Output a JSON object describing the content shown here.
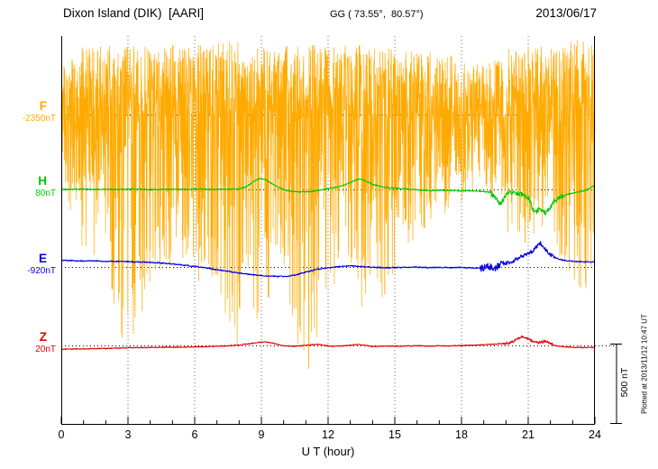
{
  "header": {
    "station_title": "Dixon Island (DIK)  [AARI]",
    "gg_coords": "GG ( 73.55°,  80.57°)",
    "date": "2013/06/17"
  },
  "xaxis": {
    "label": "U T (hour)",
    "ticks": [
      0,
      3,
      6,
      9,
      12,
      15,
      18,
      21,
      24
    ],
    "range_hours": [
      0,
      24
    ],
    "minor_tick_step_hours": 1
  },
  "scale_bar": {
    "label": "500 nT",
    "nT": 500
  },
  "footnote": "Plotted at 2013/11/12 10:47 UT",
  "chart_data": {
    "type": "line",
    "title": "Magnetogram, Dixon Island (DIK) AARI, 2013/06/17",
    "xlabel": "U T (hour)",
    "x_range_hours": [
      0,
      24
    ],
    "grid": "dotted vertical line every 3 h; dotted horizontal baseline per channel",
    "value_units": "nT offset from channel baseline (scale bar = 500 nT)",
    "series": [
      {
        "id": "F",
        "label": "F",
        "baseline_label": "-2350nT",
        "baseline_nT": -2350,
        "color": "#FFAA00",
        "character": "dense high-frequency noise band spanning most of plot height",
        "noise_envelope_by_hour": {
          "up_nT": [
            350,
            430,
            440,
            430,
            430,
            440,
            440,
            450,
            460,
            440,
            430,
            450,
            440,
            460,
            430,
            420,
            400,
            390,
            360,
            300,
            420,
            440,
            430,
            470
          ],
          "down_nT": [
            500,
            900,
            1000,
            1600,
            1100,
            950,
            1050,
            1050,
            1650,
            1250,
            1050,
            1750,
            1150,
            950,
            1550,
            1000,
            750,
            650,
            550,
            420,
            750,
            850,
            750,
            1100
          ]
        }
      },
      {
        "id": "H",
        "label": "H",
        "baseline_label": "80nT",
        "baseline_nT": 80,
        "color": "#00C800",
        "keypoints_hour_nT": [
          [
            0,
            0
          ],
          [
            0.5,
            1
          ],
          [
            1,
            2
          ],
          [
            1.5,
            0
          ],
          [
            2,
            1
          ],
          [
            2.5,
            -1
          ],
          [
            3,
            1
          ],
          [
            3.5,
            2
          ],
          [
            4,
            -1
          ],
          [
            4.5,
            0
          ],
          [
            5,
            1
          ],
          [
            5.5,
            0
          ],
          [
            6,
            2
          ],
          [
            6.5,
            1
          ],
          [
            7,
            0
          ],
          [
            7.5,
            1
          ],
          [
            8,
            3
          ],
          [
            8.3,
            15
          ],
          [
            8.6,
            45
          ],
          [
            8.9,
            68
          ],
          [
            9.2,
            60
          ],
          [
            9.5,
            35
          ],
          [
            9.8,
            12
          ],
          [
            10.1,
            -6
          ],
          [
            10.4,
            -14
          ],
          [
            10.8,
            -16
          ],
          [
            11.2,
            -14
          ],
          [
            11.6,
            -6
          ],
          [
            12,
            6
          ],
          [
            12.4,
            14
          ],
          [
            12.8,
            30
          ],
          [
            13.1,
            50
          ],
          [
            13.4,
            66
          ],
          [
            13.7,
            52
          ],
          [
            14,
            32
          ],
          [
            14.3,
            20
          ],
          [
            14.6,
            12
          ],
          [
            15,
            8
          ],
          [
            15.4,
            4
          ],
          [
            15.8,
            0
          ],
          [
            16.2,
            -6
          ],
          [
            16.6,
            -8
          ],
          [
            17,
            -5
          ],
          [
            17.4,
            -7
          ],
          [
            17.8,
            -9
          ],
          [
            18.2,
            -8
          ],
          [
            18.6,
            -9
          ],
          [
            19,
            -14
          ],
          [
            19.3,
            -20
          ],
          [
            19.55,
            -55
          ],
          [
            19.7,
            -95
          ],
          [
            19.85,
            -70
          ],
          [
            20,
            -30
          ],
          [
            20.2,
            -18
          ],
          [
            20.5,
            -22
          ],
          [
            20.8,
            -35
          ],
          [
            21.05,
            -60
          ],
          [
            21.2,
            -130
          ],
          [
            21.35,
            -145
          ],
          [
            21.5,
            -120
          ],
          [
            21.65,
            -135
          ],
          [
            21.8,
            -150
          ],
          [
            22,
            -110
          ],
          [
            22.2,
            -70
          ],
          [
            22.5,
            -45
          ],
          [
            22.8,
            -30
          ],
          [
            23.2,
            -18
          ],
          [
            23.6,
            -5
          ],
          [
            24,
            25
          ]
        ]
      },
      {
        "id": "E",
        "label": "E",
        "baseline_label": "-920nT",
        "baseline_nT": -920,
        "color": "#0000E0",
        "keypoints_hour_nT": [
          [
            0,
            42
          ],
          [
            0.5,
            40
          ],
          [
            1,
            38
          ],
          [
            1.5,
            39
          ],
          [
            2,
            36
          ],
          [
            2.5,
            35
          ],
          [
            3,
            34
          ],
          [
            3.5,
            31
          ],
          [
            4,
            29
          ],
          [
            4.5,
            25
          ],
          [
            5,
            19
          ],
          [
            5.5,
            12
          ],
          [
            6,
            4
          ],
          [
            6.5,
            -6
          ],
          [
            7,
            -18
          ],
          [
            7.5,
            -28
          ],
          [
            8,
            -38
          ],
          [
            8.5,
            -47
          ],
          [
            9,
            -54
          ],
          [
            9.5,
            -58
          ],
          [
            10,
            -60
          ],
          [
            10.3,
            -56
          ],
          [
            10.6,
            -48
          ],
          [
            11,
            -32
          ],
          [
            11.4,
            -18
          ],
          [
            11.8,
            -8
          ],
          [
            12.2,
            -2
          ],
          [
            12.6,
            4
          ],
          [
            13,
            7
          ],
          [
            13.4,
            4
          ],
          [
            13.8,
            0
          ],
          [
            14.2,
            -3
          ],
          [
            14.6,
            -5
          ],
          [
            15,
            -4
          ],
          [
            15.5,
            -2
          ],
          [
            16,
            -1
          ],
          [
            16.5,
            -4
          ],
          [
            17,
            -2
          ],
          [
            17.5,
            -5
          ],
          [
            18,
            -3
          ],
          [
            18.5,
            -6
          ],
          [
            19,
            -8
          ],
          [
            19.2,
            8
          ],
          [
            19.4,
            -12
          ],
          [
            19.6,
            2
          ],
          [
            19.8,
            18
          ],
          [
            20,
            25
          ],
          [
            20.3,
            35
          ],
          [
            20.6,
            60
          ],
          [
            20.9,
            80
          ],
          [
            21.2,
            100
          ],
          [
            21.4,
            130
          ],
          [
            21.55,
            150
          ],
          [
            21.7,
            125
          ],
          [
            21.85,
            100
          ],
          [
            22,
            80
          ],
          [
            22.2,
            60
          ],
          [
            22.4,
            48
          ],
          [
            22.7,
            40
          ],
          [
            23,
            35
          ],
          [
            23.4,
            33
          ],
          [
            23.7,
            32
          ],
          [
            24,
            31
          ]
        ]
      },
      {
        "id": "Z",
        "label": "Z",
        "baseline_label": "20nT",
        "baseline_nT": 20,
        "color": "#E00000",
        "keypoints_hour_nT": [
          [
            0,
            -24
          ],
          [
            0.5,
            -23
          ],
          [
            1,
            -22
          ],
          [
            1.5,
            -20
          ],
          [
            2,
            -19
          ],
          [
            2.5,
            -17
          ],
          [
            3,
            -15
          ],
          [
            3.5,
            -14
          ],
          [
            4,
            -13
          ],
          [
            4.5,
            -12
          ],
          [
            5,
            -11
          ],
          [
            5.5,
            -10
          ],
          [
            6,
            -9
          ],
          [
            6.5,
            -7
          ],
          [
            7,
            -5
          ],
          [
            7.5,
            -2
          ],
          [
            8,
            2
          ],
          [
            8.4,
            10
          ],
          [
            8.8,
            18
          ],
          [
            9.1,
            22
          ],
          [
            9.4,
            18
          ],
          [
            9.7,
            8
          ],
          [
            10,
            -2
          ],
          [
            10.4,
            -5
          ],
          [
            10.8,
            -2
          ],
          [
            11.2,
            4
          ],
          [
            11.5,
            7
          ],
          [
            11.8,
            2
          ],
          [
            12.1,
            -5
          ],
          [
            12.5,
            -4
          ],
          [
            12.9,
            0
          ],
          [
            13.3,
            5
          ],
          [
            13.6,
            3
          ],
          [
            14,
            -7
          ],
          [
            14.4,
            -5
          ],
          [
            14.8,
            -4
          ],
          [
            15.2,
            -5
          ],
          [
            15.6,
            -3
          ],
          [
            16,
            -2
          ],
          [
            16.5,
            -4
          ],
          [
            17,
            -2
          ],
          [
            17.5,
            -3
          ],
          [
            18,
            -1
          ],
          [
            18.5,
            1
          ],
          [
            19,
            4
          ],
          [
            19.5,
            8
          ],
          [
            20,
            14
          ],
          [
            20.3,
            24
          ],
          [
            20.55,
            45
          ],
          [
            20.7,
            55
          ],
          [
            20.85,
            48
          ],
          [
            21,
            40
          ],
          [
            21.2,
            28
          ],
          [
            21.4,
            18
          ],
          [
            21.6,
            22
          ],
          [
            21.8,
            30
          ],
          [
            22,
            12
          ],
          [
            22.2,
            0
          ],
          [
            22.5,
            -7
          ],
          [
            22.8,
            -10
          ],
          [
            23.1,
            -12
          ],
          [
            23.5,
            -13
          ],
          [
            24,
            -13
          ]
        ]
      }
    ]
  }
}
